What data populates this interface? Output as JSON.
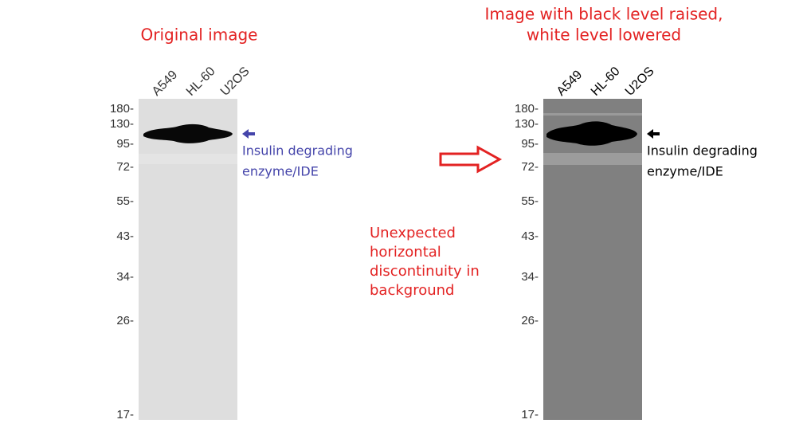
{
  "left_panel": {
    "title": "Original image",
    "lanes": [
      "A549",
      "HL-60",
      "U2OS"
    ],
    "markers": [
      "180-",
      "130-",
      "95-",
      "72-",
      "55-",
      "43-",
      "34-",
      "26-",
      "17-"
    ],
    "annotation": [
      "Insulin degrading",
      "enzyme/IDE"
    ]
  },
  "right_panel": {
    "title": [
      "Image with black level raised,",
      "white level lowered"
    ],
    "lanes": [
      "A549",
      "HL-60",
      "U2OS"
    ],
    "markers": [
      "180-",
      "130-",
      "95-",
      "72-",
      "55-",
      "43-",
      "34-",
      "26-",
      "17-"
    ],
    "annotation": [
      "Insulin degrading",
      "enzyme/IDE"
    ]
  },
  "middle_note": [
    "Unexpected",
    "horizontal",
    "discontinuity in",
    "background"
  ]
}
